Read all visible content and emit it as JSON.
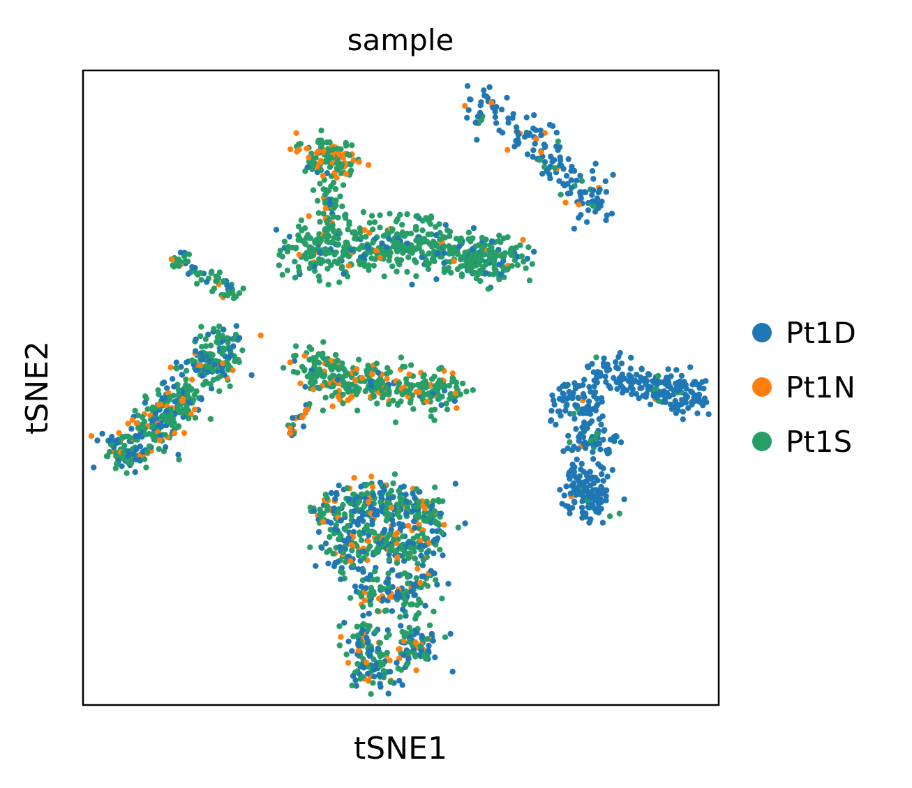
{
  "chart_data": {
    "type": "scatter",
    "title": "sample",
    "xlabel": "tSNE1",
    "ylabel": "tSNE2",
    "xlim": [
      0,
      100
    ],
    "ylim": [
      0,
      100
    ],
    "ticks": "none",
    "grid": false,
    "legend_placement": "right",
    "series": [
      {
        "name": "Pt1D",
        "color": "#1f77b4"
      },
      {
        "name": "Pt1N",
        "color": "#ff7f0e"
      },
      {
        "name": "Pt1S",
        "color": "#279e68"
      }
    ],
    "clusters": [
      {
        "label": "top-right",
        "points": [
          [
            63,
            94
          ],
          [
            68,
            91
          ],
          [
            72,
            88
          ],
          [
            75,
            85
          ],
          [
            78,
            82
          ],
          [
            80,
            79
          ]
        ],
        "spread": [
          2.2,
          2.2
        ],
        "n": 170,
        "mix": [
          0.82,
          0.08,
          0.1
        ]
      },
      {
        "label": "top-center-small",
        "points": [
          [
            37,
            87
          ],
          [
            40,
            86
          ]
        ],
        "spread": [
          2.5,
          2.2
        ],
        "n": 120,
        "mix": [
          0.02,
          0.4,
          0.58
        ]
      },
      {
        "label": "top-center-stem",
        "points": [
          [
            39,
            80
          ],
          [
            39,
            77
          ]
        ],
        "spread": [
          1.8,
          2.2
        ],
        "n": 45,
        "mix": [
          0.05,
          0.25,
          0.7
        ]
      },
      {
        "label": "upper-center-large",
        "points": [
          [
            36,
            72
          ],
          [
            44,
            72
          ],
          [
            52,
            73
          ],
          [
            58,
            71
          ],
          [
            64,
            70
          ]
        ],
        "spread": [
          4.2,
          2.6
        ],
        "n": 560,
        "mix": [
          0.14,
          0.04,
          0.82
        ]
      },
      {
        "label": "upper-left-strip",
        "points": [
          [
            15,
            70
          ],
          [
            18,
            68
          ],
          [
            21,
            67
          ],
          [
            23,
            65
          ]
        ],
        "spread": [
          1.2,
          0.9
        ],
        "n": 65,
        "mix": [
          0.12,
          0.12,
          0.76
        ]
      },
      {
        "label": "left-diagonal",
        "points": [
          [
            7,
            40
          ],
          [
            11,
            44
          ],
          [
            15,
            48
          ],
          [
            19,
            53
          ],
          [
            22,
            56
          ]
        ],
        "spread": [
          2.8,
          2.4
        ],
        "n": 430,
        "mix": [
          0.3,
          0.14,
          0.56
        ]
      },
      {
        "label": "center-small",
        "points": [
          [
            37,
            53
          ],
          [
            41,
            51
          ],
          [
            46,
            51
          ],
          [
            51,
            50
          ],
          [
            56,
            50
          ]
        ],
        "spread": [
          2.8,
          2.2
        ],
        "n": 330,
        "mix": [
          0.04,
          0.18,
          0.78
        ]
      },
      {
        "label": "center-thin",
        "points": [
          [
            33,
            43
          ],
          [
            34,
            45
          ],
          [
            35,
            47
          ]
        ],
        "spread": [
          0.5,
          0.9
        ],
        "n": 22,
        "mix": [
          0.4,
          0.25,
          0.35
        ]
      },
      {
        "label": "right-triangle",
        "points": [
          [
            77,
            48
          ],
          [
            83,
            52
          ],
          [
            90,
            50
          ],
          [
            95,
            49
          ],
          [
            80,
            42
          ],
          [
            79,
            35
          ],
          [
            80,
            32
          ]
        ],
        "spread": [
          2.6,
          2.2
        ],
        "n": 460,
        "mix": [
          0.94,
          0.02,
          0.04
        ]
      },
      {
        "label": "bottom-center",
        "points": [
          [
            39,
            30
          ],
          [
            44,
            32
          ],
          [
            49,
            32
          ],
          [
            54,
            30
          ],
          [
            42,
            24
          ],
          [
            48,
            26
          ],
          [
            53,
            24
          ],
          [
            46,
            18
          ],
          [
            51,
            18
          ],
          [
            44,
            10
          ],
          [
            52,
            10
          ],
          [
            46,
            5
          ]
        ],
        "spread": [
          2.6,
          2.4
        ],
        "n": 850,
        "mix": [
          0.38,
          0.12,
          0.5
        ]
      }
    ]
  }
}
